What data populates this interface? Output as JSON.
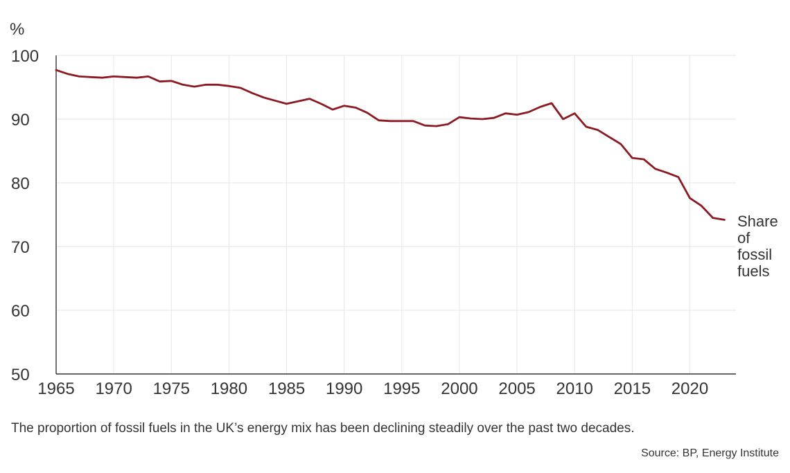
{
  "chart_data": {
    "type": "line",
    "ylabel": "%",
    "ylim": [
      50,
      100
    ],
    "yticks": [
      "100",
      "90",
      "80",
      "70",
      "60",
      "50"
    ],
    "xlim": [
      1965,
      2024
    ],
    "xticks": [
      "1965",
      "1970",
      "1975",
      "1980",
      "1985",
      "1990",
      "1995",
      "2000",
      "2005",
      "2010",
      "2015",
      "2020"
    ],
    "grid": true,
    "series": [
      {
        "name": "Share of fossil fuels",
        "color": "#8b1a22",
        "x": [
          1965,
          1966,
          1967,
          1968,
          1969,
          1970,
          1971,
          1972,
          1973,
          1974,
          1975,
          1976,
          1977,
          1978,
          1979,
          1980,
          1981,
          1982,
          1983,
          1984,
          1985,
          1986,
          1987,
          1988,
          1989,
          1990,
          1991,
          1992,
          1993,
          1994,
          1995,
          1996,
          1997,
          1998,
          1999,
          2000,
          2001,
          2002,
          2003,
          2004,
          2005,
          2006,
          2007,
          2008,
          2009,
          2010,
          2011,
          2012,
          2013,
          2014,
          2015,
          2016,
          2017,
          2018,
          2019,
          2020,
          2021,
          2022,
          2023
        ],
        "values": [
          97.7,
          97.1,
          96.7,
          96.6,
          96.5,
          96.7,
          96.6,
          96.5,
          96.7,
          95.9,
          96.0,
          95.4,
          95.1,
          95.4,
          95.4,
          95.2,
          94.9,
          94.1,
          93.4,
          92.9,
          92.4,
          92.8,
          93.2,
          92.4,
          91.5,
          92.1,
          91.8,
          91.0,
          89.8,
          89.7,
          89.7,
          89.7,
          89.0,
          88.9,
          89.2,
          90.3,
          90.1,
          90.0,
          90.2,
          90.9,
          90.7,
          91.1,
          91.9,
          92.5,
          90.0,
          90.9,
          88.8,
          88.3,
          87.2,
          86.1,
          83.9,
          83.7,
          82.2,
          81.6,
          80.9,
          77.6,
          76.4,
          74.5,
          74.2
        ]
      }
    ],
    "annotations": {
      "series_label_lines": [
        "Share",
        "of",
        "fossil",
        "fuels"
      ]
    }
  },
  "caption": "The proportion of fossil fuels in the UK’s energy mix has been declining steadily over the past two decades.",
  "source": "Source: BP, Energy Institute",
  "colors": {
    "line": "#8b1a22",
    "grid": "#e6e6e6",
    "axis": "#333333",
    "text": "#333333"
  }
}
